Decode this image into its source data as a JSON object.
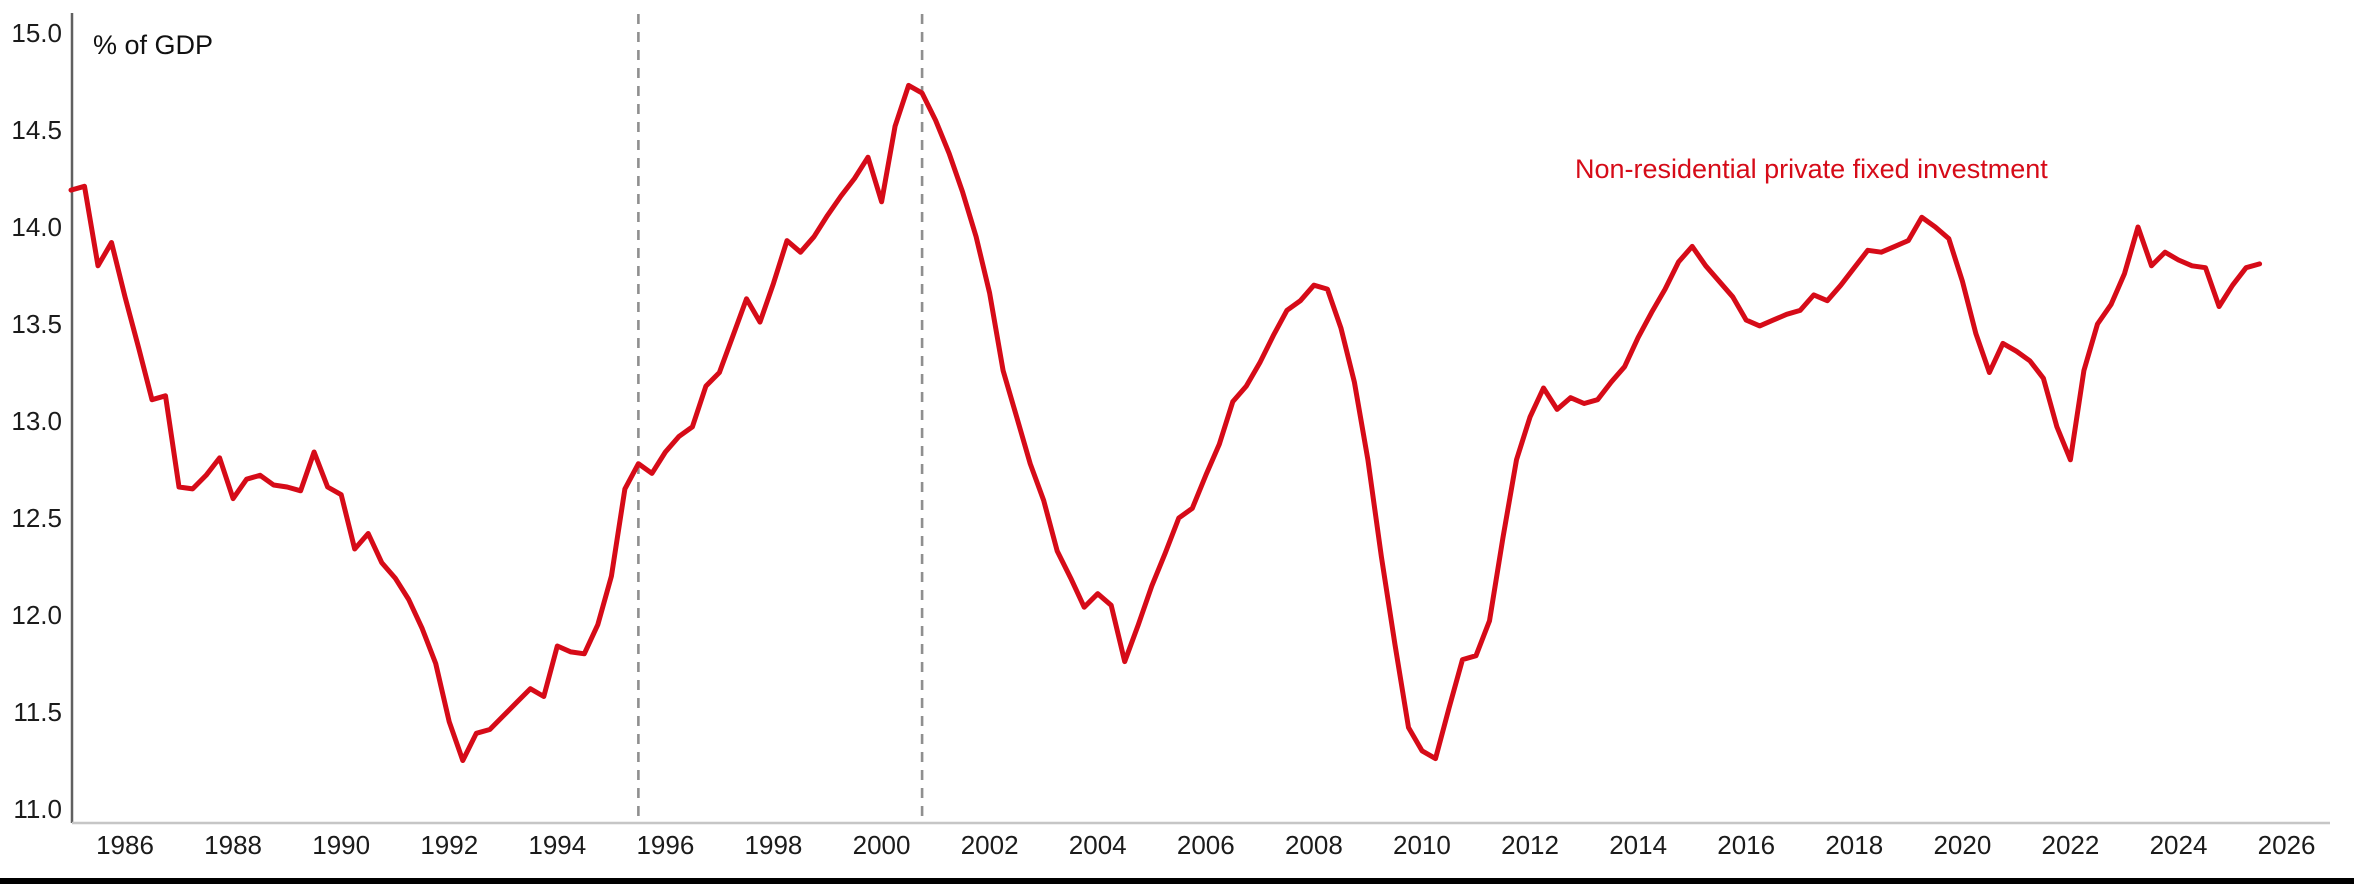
{
  "chart_data": {
    "type": "line",
    "title": "",
    "unit_label": "% of GDP",
    "frequency": "quarterly",
    "x_start": 1985.0,
    "x_step": 0.25,
    "xlim": [
      1984.9,
      2026.8
    ],
    "ylim": [
      11.0,
      15.0
    ],
    "grid": "off",
    "legend_position": "inside-top-right",
    "x_ticks": [
      1986,
      1988,
      1990,
      1992,
      1994,
      1996,
      1998,
      2000,
      2002,
      2004,
      2006,
      2008,
      2010,
      2012,
      2014,
      2016,
      2018,
      2020,
      2022,
      2024,
      2026
    ],
    "y_ticks": [
      "15.0",
      "14.5",
      "14.0",
      "13.5",
      "13.0",
      "12.5",
      "12.0",
      "11.5",
      "11.0"
    ],
    "vertical_dashed_markers": [
      1995.5,
      2000.75
    ],
    "series": [
      {
        "name": "Non-residential private fixed investment",
        "color": "#d60b18",
        "values": [
          14.19,
          14.21,
          13.8,
          13.92,
          13.64,
          13.38,
          13.11,
          13.13,
          12.66,
          12.65,
          12.72,
          12.81,
          12.6,
          12.7,
          12.72,
          12.67,
          12.66,
          12.64,
          12.84,
          12.66,
          12.62,
          12.34,
          12.42,
          12.27,
          12.19,
          12.08,
          11.93,
          11.75,
          11.45,
          11.25,
          11.39,
          11.41,
          11.48,
          11.55,
          11.62,
          11.58,
          11.84,
          11.81,
          11.8,
          11.95,
          12.2,
          12.65,
          12.78,
          12.73,
          12.84,
          12.92,
          12.97,
          13.18,
          13.25,
          13.44,
          13.63,
          13.51,
          13.71,
          13.93,
          13.87,
          13.95,
          14.06,
          14.16,
          14.25,
          14.36,
          14.13,
          14.52,
          14.73,
          14.69,
          14.55,
          14.38,
          14.18,
          13.95,
          13.66,
          13.26,
          13.02,
          12.78,
          12.59,
          12.33,
          12.19,
          12.04,
          12.11,
          12.05,
          11.76,
          11.95,
          12.15,
          12.32,
          12.5,
          12.55,
          12.72,
          12.88,
          13.1,
          13.18,
          13.3,
          13.44,
          13.57,
          13.62,
          13.7,
          13.68,
          13.48,
          13.2,
          12.8,
          12.3,
          11.85,
          11.42,
          11.3,
          11.26,
          11.52,
          11.77,
          11.79,
          11.97,
          12.4,
          12.8,
          13.02,
          13.17,
          13.06,
          13.12,
          13.09,
          13.11,
          13.2,
          13.28,
          13.43,
          13.56,
          13.68,
          13.82,
          13.9,
          13.8,
          13.72,
          13.64,
          13.52,
          13.49,
          13.52,
          13.55,
          13.57,
          13.65,
          13.62,
          13.7,
          13.79,
          13.88,
          13.87,
          13.9,
          13.93,
          14.05,
          14.0,
          13.94,
          13.72,
          13.45,
          13.25,
          13.4,
          13.36,
          13.31,
          13.22,
          12.97,
          12.8,
          13.26,
          13.5,
          13.6,
          13.76,
          14.0,
          13.8,
          13.87,
          13.83,
          13.8,
          13.79,
          13.59,
          13.7,
          13.79,
          13.81
        ]
      }
    ],
    "colors": {
      "line": "#d60b18",
      "y_axis": "#606060",
      "x_axis": "#c6c6c6",
      "dashed_marker": "#8f8f8f",
      "tick_label": "#1b1b1b",
      "bottom_rule": "#000000"
    }
  }
}
